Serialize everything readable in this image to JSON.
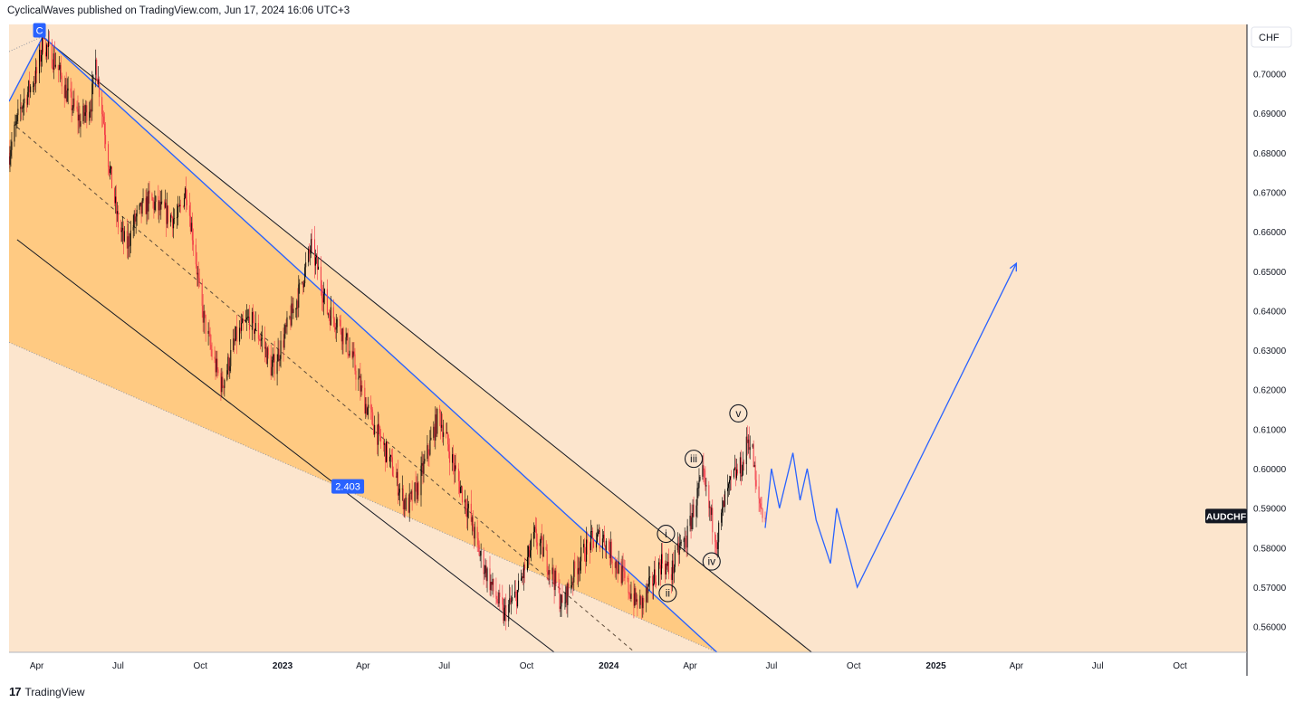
{
  "header": {
    "publish_line": "CyclicalWaves published on TradingView.com, Jun 17, 2024 16:06 UTC+3"
  },
  "footer": {
    "brand": "TradingView",
    "logo_glyph": "17"
  },
  "colors": {
    "background": "#fce5cd",
    "channel_fill": "#ffc77a",
    "projection_fill": "#ffd9a8",
    "blue_line": "#2962ff",
    "up_candle": "#000000",
    "down_candle": "#f23645",
    "badge_blue": "#2962ff",
    "symbol_badge": "#131722"
  },
  "chart_data": {
    "type": "candlestick",
    "symbol_label": "AUDCHF",
    "currency_label": "CHF",
    "last_price": 0.588,
    "y_axis": {
      "range": [
        0.5535,
        0.7125
      ],
      "ticks": [
        "0.71000",
        "0.70000",
        "0.69000",
        "0.68000",
        "0.67000",
        "0.66000",
        "0.65000",
        "0.64000",
        "0.63000",
        "0.62000",
        "0.61000",
        "0.60000",
        "0.59000",
        "0.58000",
        "0.57000",
        "0.56000"
      ],
      "tick_values": [
        0.71,
        0.7,
        0.69,
        0.68,
        0.67,
        0.66,
        0.65,
        0.64,
        0.63,
        0.62,
        0.61,
        0.6,
        0.59,
        0.58,
        0.57,
        0.56
      ]
    },
    "x_axis": {
      "range": [
        "2022-03-01",
        "2025-12-15"
      ],
      "ticks": [
        {
          "label": "Apr",
          "date": "2022-04-01",
          "bold": false
        },
        {
          "label": "Jul",
          "date": "2022-07-01",
          "bold": false
        },
        {
          "label": "Oct",
          "date": "2022-10-01",
          "bold": false
        },
        {
          "label": "2023",
          "date": "2023-01-01",
          "bold": true
        },
        {
          "label": "Apr",
          "date": "2023-04-01",
          "bold": false
        },
        {
          "label": "Jul",
          "date": "2023-07-01",
          "bold": false
        },
        {
          "label": "Oct",
          "date": "2023-10-01",
          "bold": false
        },
        {
          "label": "2024",
          "date": "2024-01-01",
          "bold": true
        },
        {
          "label": "Apr",
          "date": "2024-04-01",
          "bold": false
        },
        {
          "label": "Jul",
          "date": "2024-07-01",
          "bold": false
        },
        {
          "label": "Oct",
          "date": "2024-10-01",
          "bold": false
        },
        {
          "label": "2025",
          "date": "2025-01-01",
          "bold": true
        },
        {
          "label": "Apr",
          "date": "2025-04-01",
          "bold": false
        },
        {
          "label": "Jul",
          "date": "2025-07-01",
          "bold": false
        },
        {
          "label": "Oct",
          "date": "2025-10-01",
          "bold": false
        }
      ]
    },
    "price_path": [
      [
        "2022-03-01",
        0.68
      ],
      [
        "2022-03-15",
        0.692
      ],
      [
        "2022-04-01",
        0.7
      ],
      [
        "2022-04-08",
        0.708
      ],
      [
        "2022-04-22",
        0.703
      ],
      [
        "2022-05-06",
        0.694
      ],
      [
        "2022-05-20",
        0.688
      ],
      [
        "2022-06-01",
        0.693
      ],
      [
        "2022-06-06",
        0.703
      ],
      [
        "2022-06-15",
        0.688
      ],
      [
        "2022-06-22",
        0.675
      ],
      [
        "2022-07-01",
        0.662
      ],
      [
        "2022-07-10",
        0.656
      ],
      [
        "2022-07-20",
        0.663
      ],
      [
        "2022-08-05",
        0.668
      ],
      [
        "2022-08-20",
        0.665
      ],
      [
        "2022-09-05",
        0.663
      ],
      [
        "2022-09-15",
        0.671
      ],
      [
        "2022-09-25",
        0.655
      ],
      [
        "2022-10-01",
        0.642
      ],
      [
        "2022-10-15",
        0.628
      ],
      [
        "2022-10-25",
        0.621
      ],
      [
        "2022-11-10",
        0.633
      ],
      [
        "2022-11-25",
        0.638
      ],
      [
        "2022-12-10",
        0.632
      ],
      [
        "2022-12-20",
        0.625
      ],
      [
        "2023-01-01",
        0.632
      ],
      [
        "2023-01-20",
        0.645
      ],
      [
        "2023-02-02",
        0.656
      ],
      [
        "2023-02-10",
        0.65
      ],
      [
        "2023-02-20",
        0.64
      ],
      [
        "2023-03-05",
        0.637
      ],
      [
        "2023-03-20",
        0.628
      ],
      [
        "2023-04-01",
        0.618
      ],
      [
        "2023-04-15",
        0.61
      ],
      [
        "2023-05-01",
        0.602
      ],
      [
        "2023-05-10",
        0.596
      ],
      [
        "2023-05-20",
        0.59
      ],
      [
        "2023-06-01",
        0.595
      ],
      [
        "2023-06-15",
        0.606
      ],
      [
        "2023-06-25",
        0.614
      ],
      [
        "2023-07-05",
        0.606
      ],
      [
        "2023-07-15",
        0.598
      ],
      [
        "2023-07-28",
        0.589
      ],
      [
        "2023-08-10",
        0.578
      ],
      [
        "2023-08-25",
        0.569
      ],
      [
        "2023-09-05",
        0.563
      ],
      [
        "2023-09-20",
        0.568
      ],
      [
        "2023-10-01",
        0.576
      ],
      [
        "2023-10-10",
        0.583
      ],
      [
        "2023-10-20",
        0.579
      ],
      [
        "2023-11-01",
        0.572
      ],
      [
        "2023-11-10",
        0.565
      ],
      [
        "2023-11-25",
        0.575
      ],
      [
        "2023-12-10",
        0.581
      ],
      [
        "2023-12-25",
        0.583
      ],
      [
        "2024-01-05",
        0.578
      ],
      [
        "2024-01-20",
        0.571
      ],
      [
        "2024-02-01",
        0.566
      ],
      [
        "2024-02-08",
        0.566
      ],
      [
        "2024-02-20",
        0.572
      ],
      [
        "2024-03-01",
        0.577
      ],
      [
        "2024-03-10",
        0.573
      ],
      [
        "2024-03-20",
        0.58
      ],
      [
        "2024-03-28",
        0.582
      ],
      [
        "2024-04-05",
        0.59
      ],
      [
        "2024-04-15",
        0.598
      ],
      [
        "2024-04-22",
        0.59
      ],
      [
        "2024-05-01",
        0.582
      ],
      [
        "2024-05-10",
        0.592
      ],
      [
        "2024-05-20",
        0.598
      ],
      [
        "2024-05-30",
        0.601
      ],
      [
        "2024-06-05",
        0.608
      ],
      [
        "2024-06-10",
        0.604
      ],
      [
        "2024-06-14",
        0.594
      ],
      [
        "2024-06-20",
        0.59
      ],
      [
        "2024-06-24",
        0.588
      ]
    ],
    "overlays": {
      "upper_channel_line": [
        [
          "2022-04-01",
          0.7105
        ],
        [
          "2024-08-15",
          0.5535
        ]
      ],
      "channel_mid_line": [
        [
          "2022-03-10",
          0.6865
        ],
        [
          "2024-01-30",
          0.5535
        ]
      ],
      "lower_channel_line": [
        [
          "2022-03-10",
          0.658
        ],
        [
          "2023-11-01",
          0.5535
        ]
      ],
      "blue_trendline": [
        [
          "2022-03-01",
          0.693
        ],
        [
          "2022-04-08",
          0.7095
        ],
        [
          "2024-05-01",
          0.5535
        ]
      ],
      "lower_fan_line": [
        [
          "2022-03-01",
          0.632
        ],
        [
          "2024-05-01",
          0.5535
        ]
      ],
      "projection_path": [
        [
          "2024-06-24",
          0.585
        ],
        [
          "2024-07-01",
          0.6
        ],
        [
          "2024-07-10",
          0.59
        ],
        [
          "2024-07-25",
          0.604
        ],
        [
          "2024-08-02",
          0.592
        ],
        [
          "2024-08-10",
          0.6
        ],
        [
          "2024-08-20",
          0.587
        ],
        [
          "2024-09-05",
          0.576
        ],
        [
          "2024-09-12",
          0.59
        ],
        [
          "2024-10-05",
          0.57
        ],
        [
          "2025-04-01",
          0.652
        ]
      ]
    },
    "annotations": [
      {
        "label": "C",
        "date": "2022-04-04",
        "price": 0.711,
        "style": "blue-badge"
      },
      {
        "label": "2.403",
        "date": "2023-03-15",
        "price": 0.5955,
        "style": "blue-badge"
      },
      {
        "label": "i",
        "date": "2024-03-05",
        "price": 0.5835,
        "style": "circle"
      },
      {
        "label": "ii",
        "date": "2024-03-07",
        "price": 0.5685,
        "style": "circle"
      },
      {
        "label": "iii",
        "date": "2024-04-05",
        "price": 0.6025,
        "style": "circle"
      },
      {
        "label": "iv",
        "date": "2024-04-25",
        "price": 0.5765,
        "style": "circle"
      },
      {
        "label": "v",
        "date": "2024-05-25",
        "price": 0.614,
        "style": "circle"
      }
    ]
  }
}
